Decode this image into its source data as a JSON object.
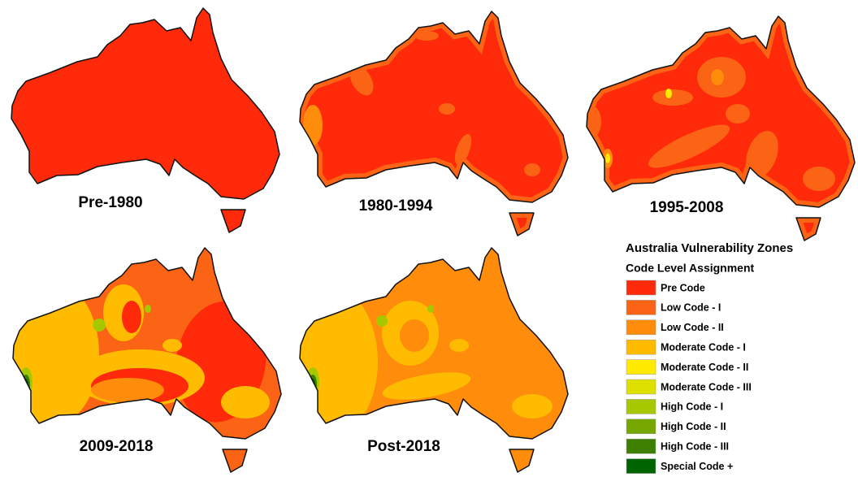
{
  "panels": [
    {
      "label": "Pre-1980"
    },
    {
      "label": "1980-1994"
    },
    {
      "label": "1995-2008"
    },
    {
      "label": "2009-2018"
    },
    {
      "label": "Post-2018"
    }
  ],
  "legend": {
    "title": "Australia Vulnerability Zones",
    "subtitle": "Code Level Assignment",
    "items": [
      {
        "label": "Pre Code",
        "color": "#ff2a0a"
      },
      {
        "label": "Low Code - I",
        "color": "#fa6414"
      },
      {
        "label": "Low Code  - II",
        "color": "#ff8c0a"
      },
      {
        "label": "Moderate Code  - I",
        "color": "#ffbb00"
      },
      {
        "label": "Moderate Code - II",
        "color": "#ffea00"
      },
      {
        "label": "Moderate Code - III",
        "color": "#dde000"
      },
      {
        "label": "High Code - I",
        "color": "#a6c800"
      },
      {
        "label": "High Code - II",
        "color": "#76a600"
      },
      {
        "label": "High Code - III",
        "color": "#3e7f00"
      },
      {
        "label": "Special Code +",
        "color": "#006400"
      }
    ]
  }
}
